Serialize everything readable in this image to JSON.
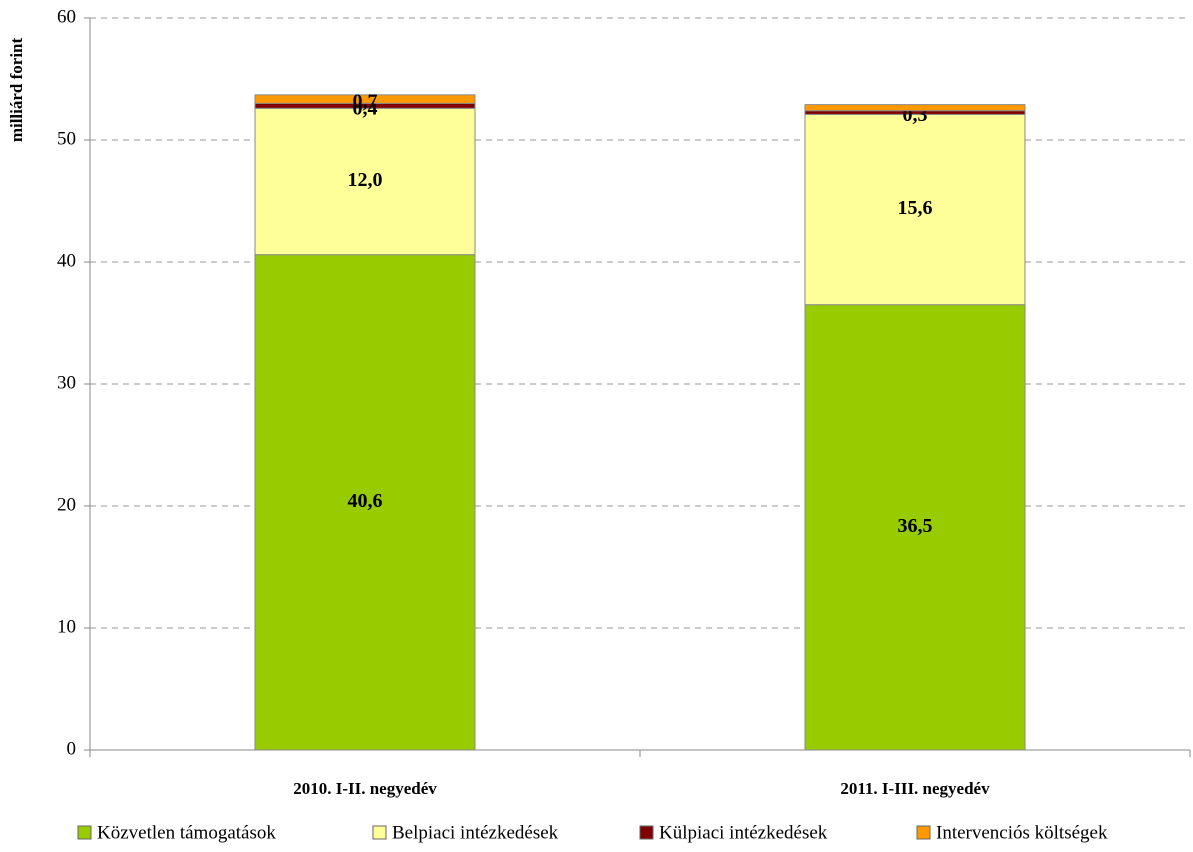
{
  "chart_data": {
    "type": "stacked_bar",
    "ylabel": "milliárd forint",
    "categories": [
      "2010. I-II. negyedév",
      "2011. I-III. negyedév"
    ],
    "series": [
      {
        "name": "Közvetlen támogatások",
        "color": "#99cc00",
        "values": [
          40.6,
          36.5
        ],
        "value_labels": [
          "40,6",
          "36,5"
        ]
      },
      {
        "name": "Belpiaci intézkedések",
        "color": "#ffff99",
        "values": [
          12.0,
          15.6
        ],
        "value_labels": [
          "12,0",
          "15,6"
        ]
      },
      {
        "name": "Külpiaci intézkedések",
        "color": "#800000",
        "values": [
          0.4,
          0.3
        ],
        "value_labels": [
          "0,4",
          "0,3"
        ]
      },
      {
        "name": "Intervenciós költségek",
        "color": "#ff9900",
        "values": [
          0.7,
          0.5
        ],
        "value_labels": [
          "0,7",
          null
        ]
      }
    ],
    "ylim": [
      0,
      60
    ],
    "yticks": [
      0,
      10,
      20,
      30,
      40,
      50,
      60
    ],
    "grid": true,
    "legend": "bottom"
  }
}
